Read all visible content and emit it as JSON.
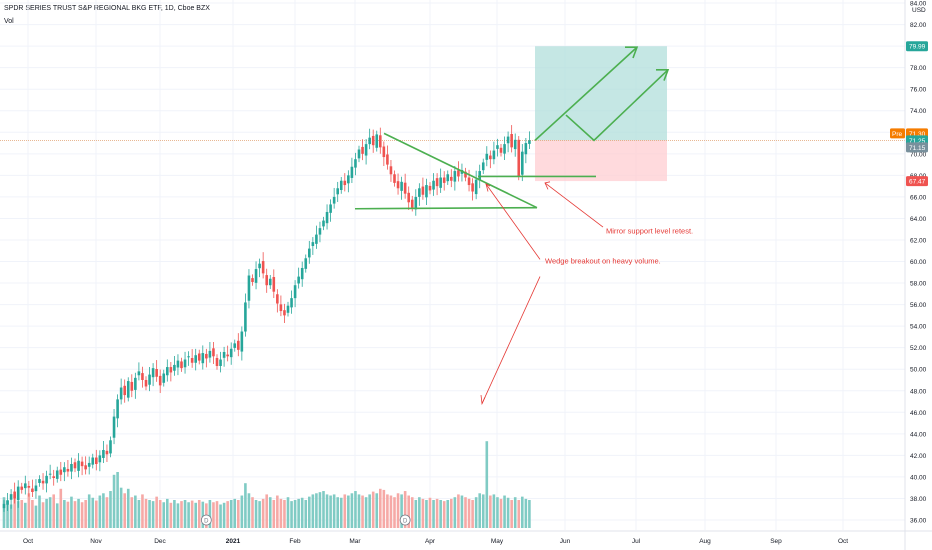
{
  "header": {
    "title": "SPDR SERIES TRUST S&P REGIONAL BKG ETF, 1D, Cboe BZX",
    "vol_label": "Vol"
  },
  "colors": {
    "up": "#26a69a",
    "down": "#ef5350",
    "vol_up": "#80cbc4",
    "vol_down": "#f6a9a6",
    "drawing": "#4caf50",
    "annotation": "#e53935",
    "target": "#b2dfdb",
    "stop": "#ffcdd2",
    "last_price_tag": "#f57c00",
    "target_tag": "#26a69a",
    "stop_tag": "#ef5350",
    "price_tag": "#78909c"
  },
  "chart_data": {
    "type": "candlestick",
    "symbol": "SPDR SERIES TRUST S&P REGIONAL BKG ETF",
    "interval": "1D",
    "exchange": "Cboe BZX",
    "y_axis_unit": "USD",
    "ylim": [
      36,
      84
    ],
    "y_ticks": [
      "84.00",
      "82.00",
      "80.00",
      "78.00",
      "76.00",
      "74.00",
      "72.00",
      "70.00",
      "68.00",
      "66.00",
      "64.00",
      "62.00",
      "60.00",
      "58.00",
      "56.00",
      "54.00",
      "52.00",
      "50.00",
      "48.00",
      "46.00",
      "44.00",
      "42.00",
      "40.00",
      "38.00",
      "36.00"
    ],
    "x_ticks": [
      "Oct",
      "Nov",
      "Dec",
      "2021",
      "Feb",
      "Mar",
      "Apr",
      "May",
      "Jun",
      "Jul",
      "Aug",
      "Sep",
      "Oct"
    ],
    "price_labels": [
      {
        "label": "79.99",
        "kind": "target"
      },
      {
        "label": "71.30",
        "kind": "last",
        "prefix": "Pre"
      },
      {
        "label": "71.25",
        "kind": "close"
      },
      {
        "label": "71.15",
        "kind": "price"
      },
      {
        "label": "67.47",
        "kind": "stop"
      }
    ],
    "closes": [
      37.5,
      37.8,
      38.4,
      38.0,
      39.1,
      38.8,
      39.4,
      39.0,
      38.6,
      39.2,
      39.8,
      39.4,
      40.1,
      40.3,
      39.9,
      40.6,
      40.2,
      40.9,
      40.5,
      41.2,
      40.8,
      41.5,
      41.0,
      40.7,
      41.3,
      41.8,
      41.2,
      42.0,
      42.5,
      42.1,
      43.4,
      45.6,
      47.2,
      48.3,
      47.6,
      48.9,
      48.0,
      49.2,
      49.8,
      49.0,
      48.4,
      49.5,
      50.1,
      49.3,
      48.5,
      49.6,
      50.2,
      49.7,
      50.4,
      50.8,
      50.1,
      50.9,
      51.2,
      50.6,
      51.3,
      50.8,
      51.5,
      51.0,
      51.7,
      51.2,
      50.3,
      50.9,
      51.6,
      51.2,
      51.9,
      52.4,
      51.8,
      53.5,
      56.2,
      58.7,
      58.1,
      59.3,
      59.8,
      58.9,
      57.8,
      58.4,
      57.2,
      56.1,
      55.4,
      55.0,
      55.9,
      56.6,
      57.8,
      58.6,
      59.4,
      60.3,
      61.2,
      61.8,
      62.5,
      63.1,
      63.8,
      64.6,
      65.3,
      66.0,
      66.8,
      67.5,
      67.1,
      68.0,
      68.8,
      69.5,
      70.4,
      70.0,
      70.9,
      71.5,
      70.8,
      71.8,
      70.6,
      69.7,
      69.0,
      68.1,
      67.3,
      66.8,
      67.4,
      66.3,
      65.5,
      65.0,
      66.0,
      66.8,
      66.2,
      67.1,
      66.6,
      67.5,
      67.0,
      67.8,
      67.3,
      68.1,
      67.5,
      68.4,
      67.9,
      68.5,
      67.8,
      67.1,
      66.5,
      67.6,
      68.4,
      69.2,
      70.0,
      69.5,
      70.3,
      70.8,
      70.1,
      70.9,
      71.6,
      70.6,
      71.3,
      67.9,
      70.2,
      71.0,
      71.25
    ],
    "volume_scale_note": "relative",
    "volume": [
      0.55,
      0.5,
      0.42,
      0.6,
      0.48,
      0.5,
      0.45,
      0.62,
      0.5,
      0.4,
      0.58,
      0.46,
      0.52,
      0.55,
      0.6,
      0.44,
      0.7,
      0.5,
      0.47,
      0.56,
      0.48,
      0.52,
      0.46,
      0.5,
      0.6,
      0.54,
      0.49,
      0.58,
      0.62,
      0.55,
      0.66,
      0.95,
      1.0,
      0.72,
      0.62,
      0.7,
      0.55,
      0.58,
      0.5,
      0.6,
      0.52,
      0.5,
      0.48,
      0.56,
      0.5,
      0.46,
      0.52,
      0.45,
      0.5,
      0.44,
      0.48,
      0.5,
      0.46,
      0.49,
      0.45,
      0.5,
      0.47,
      0.44,
      0.5,
      0.46,
      0.48,
      0.42,
      0.45,
      0.48,
      0.5,
      0.52,
      0.5,
      0.58,
      0.8,
      0.62,
      0.55,
      0.5,
      0.48,
      0.52,
      0.6,
      0.55,
      0.5,
      0.58,
      0.52,
      0.5,
      0.55,
      0.48,
      0.5,
      0.52,
      0.54,
      0.5,
      0.56,
      0.6,
      0.62,
      0.64,
      0.66,
      0.6,
      0.58,
      0.6,
      0.55,
      0.54,
      0.6,
      0.58,
      0.62,
      0.66,
      0.6,
      0.58,
      0.55,
      0.6,
      0.65,
      0.62,
      0.7,
      0.68,
      0.6,
      0.58,
      0.55,
      0.62,
      0.6,
      0.66,
      0.58,
      0.55,
      0.5,
      0.55,
      0.52,
      0.5,
      0.54,
      0.5,
      0.52,
      0.5,
      0.48,
      0.5,
      0.52,
      0.55,
      0.6,
      0.58,
      0.55,
      0.52,
      0.5,
      0.55,
      0.62,
      0.6,
      1.55,
      0.58,
      0.6,
      0.55,
      0.52,
      0.58,
      0.54,
      0.5,
      0.55,
      0.5,
      0.56,
      0.52,
      0.5
    ],
    "annotations": [
      {
        "text": "Mirror support level retest."
      },
      {
        "text": "Wedge breakout on heavy volume."
      }
    ],
    "dividend_marker": "D",
    "target": 79.99,
    "stop": 67.47,
    "entry": 71.25
  }
}
